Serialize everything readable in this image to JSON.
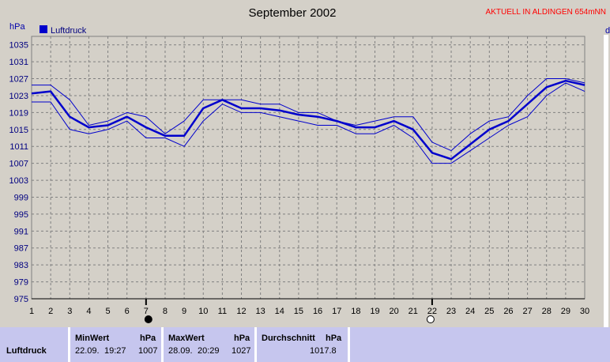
{
  "chart_data": {
    "type": "line",
    "title": "September 2002",
    "ylabel": "hPa",
    "ylim": [
      975,
      1037
    ],
    "yticks": [
      975,
      979,
      983,
      987,
      991,
      995,
      999,
      1003,
      1007,
      1011,
      1015,
      1019,
      1023,
      1027,
      1031,
      1035
    ],
    "xlim": [
      1,
      30
    ],
    "x": [
      1,
      2,
      3,
      4,
      5,
      6,
      7,
      8,
      9,
      10,
      11,
      12,
      13,
      14,
      15,
      16,
      17,
      18,
      19,
      20,
      21,
      22,
      23,
      24,
      25,
      26,
      27,
      28,
      29,
      30
    ],
    "grid": true,
    "legend_position": "top-left",
    "series": [
      {
        "name": "Luftdruck",
        "role": "mean",
        "color": "#0000cc",
        "values": [
          1023.5,
          1024,
          1018,
          1015.5,
          1016,
          1018,
          1015.5,
          1013.5,
          1013.5,
          1020,
          1022,
          1020,
          1020,
          1019.5,
          1018.5,
          1018,
          1017,
          1015.5,
          1015.5,
          1017,
          1015,
          1009.5,
          1008,
          1011.5,
          1015,
          1017,
          1021,
          1025,
          1026.5,
          1025.5
        ]
      },
      {
        "role": "max",
        "color": "#0000cc",
        "values": [
          1025.5,
          1025.5,
          1022,
          1016,
          1017,
          1019,
          1018,
          1014,
          1017,
          1022,
          1022,
          1022,
          1021,
          1021,
          1019,
          1019,
          1017,
          1016,
          1017,
          1018,
          1018,
          1012,
          1010,
          1014,
          1017,
          1018,
          1023,
          1027,
          1027,
          1026
        ]
      },
      {
        "role": "min",
        "color": "#0000cc",
        "values": [
          1021.5,
          1021.5,
          1015,
          1014,
          1015,
          1017,
          1013,
          1013,
          1011,
          1017,
          1021,
          1019,
          1019,
          1018,
          1017,
          1016,
          1016,
          1014,
          1014,
          1016,
          1013,
          1007,
          1007,
          1010,
          1013,
          1016,
          1018,
          1023,
          1026,
          1024
        ]
      }
    ],
    "moon_phases": [
      {
        "day": 7,
        "phase": "new-moon"
      },
      {
        "day": 22,
        "phase": "full-moon"
      }
    ]
  },
  "header": {
    "title": "September 2002",
    "badge": "AKTUELL IN ALDINGEN 654mNN",
    "unit": "hPa",
    "right_edge_letter": "d"
  },
  "legend": {
    "label": "Luftdruck",
    "color": "#0000cc"
  },
  "stats": {
    "row_label": "Luftdruck",
    "min_label": "MinWert",
    "min_unit": "hPa",
    "min_date": "22.09.",
    "min_time": "19:27",
    "min_value": "1007",
    "max_label": "MaxWert",
    "max_unit": "hPa",
    "max_date": "28.09.",
    "max_time": "20:29",
    "max_value": "1027",
    "avg_label": "Durchschnitt",
    "avg_unit": "hPa",
    "avg_value": "1017.8"
  }
}
